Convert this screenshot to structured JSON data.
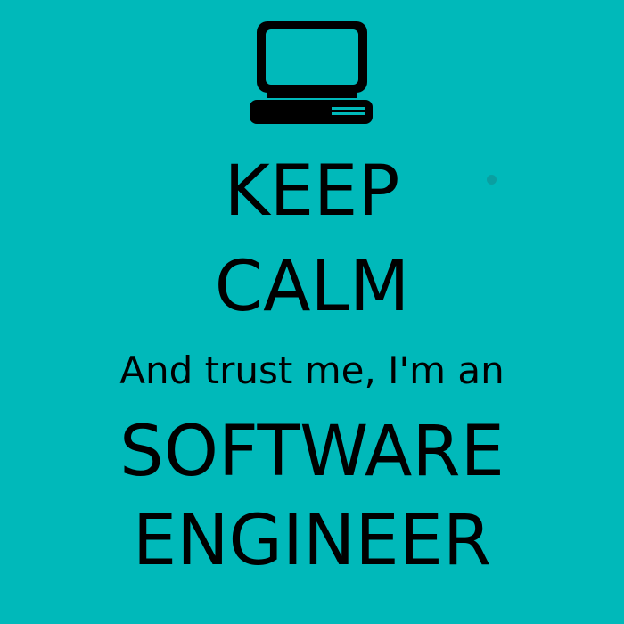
{
  "poster": {
    "background_color": "#00B9BA",
    "text_color": "#000000",
    "icon": "computer-terminal-icon",
    "lines": [
      "KEEP",
      "CALM",
      "And trust me, I'm an",
      "SOFTWARE",
      "ENGINEER"
    ]
  }
}
